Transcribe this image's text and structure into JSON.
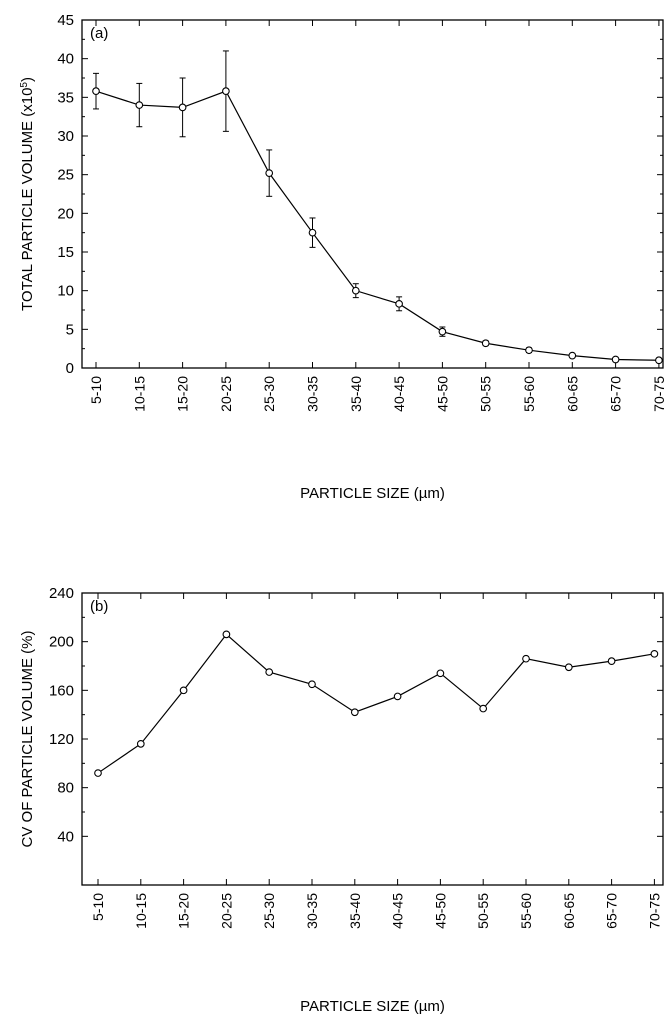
{
  "chart_data": [
    {
      "type": "line",
      "panel_label": "(a)",
      "ylabel_main": "TOTAL PARTICLE VOLUME (x10",
      "ylabel_exp": "5",
      "ylabel_close": ")",
      "xlabel": "PARTICLE SIZE (µm)",
      "categories": [
        "5-10",
        "10-15",
        "15-20",
        "20-25",
        "25-30",
        "30-35",
        "35-40",
        "40-45",
        "45-50",
        "50-55",
        "55-60",
        "60-65",
        "65-70",
        "70-75"
      ],
      "ylim": [
        0,
        45
      ],
      "yticks": [
        "0",
        "5",
        "10",
        "15",
        "20",
        "25",
        "30",
        "35",
        "40",
        "45"
      ],
      "series": [
        {
          "values": [
            35.8,
            34.0,
            33.7,
            35.8,
            25.2,
            17.5,
            10.0,
            8.3,
            4.7,
            3.2,
            2.3,
            1.6,
            1.1,
            1.0
          ],
          "error": [
            2.3,
            2.8,
            3.8,
            5.2,
            3.0,
            1.9,
            0.9,
            0.9,
            0.6,
            0.3,
            0.3,
            0.2,
            0.2,
            0.1
          ]
        }
      ]
    },
    {
      "type": "line",
      "panel_label": "(b)",
      "ylabel": "CV OF PARTICLE VOLUME (%)",
      "xlabel": "PARTICLE SIZE (µm)",
      "categories": [
        "5-10",
        "10-15",
        "15-20",
        "20-25",
        "25-30",
        "30-35",
        "35-40",
        "40-45",
        "45-50",
        "50-55",
        "55-60",
        "60-65",
        "65-70",
        "70-75"
      ],
      "ylim": [
        0,
        240
      ],
      "yticks": [
        "40",
        "80",
        "120",
        "160",
        "200",
        "240"
      ],
      "series": [
        {
          "values": [
            92,
            116,
            160,
            206,
            175,
            165,
            142,
            155,
            174,
            145,
            186,
            179,
            184,
            190
          ]
        }
      ]
    }
  ]
}
